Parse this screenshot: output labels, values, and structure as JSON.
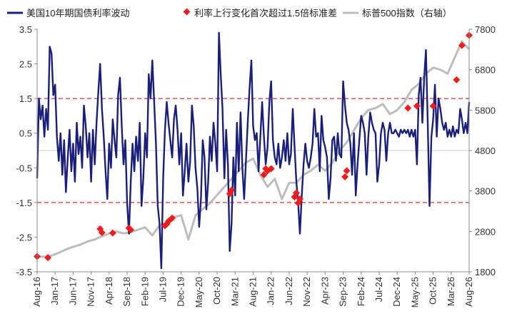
{
  "chart_data": {
    "type": "line",
    "title": "",
    "legend": {
      "placement": "top",
      "entries": [
        {
          "key": "yield",
          "label": "美国10年期国债利率波动"
        },
        {
          "key": "markers",
          "label": "利率上行变化首次超过1.5倍标准差"
        },
        {
          "key": "sp500",
          "label": "标普500指数（右轴）"
        }
      ]
    },
    "x_axis": {
      "tick_labels": [
        "Aug-16",
        "Jan-17",
        "Jun-17",
        "Nov-17",
        "Apr-18",
        "Sep-18",
        "Feb-19",
        "Jul-19",
        "Dec-19",
        "May-20",
        "Oct-20",
        "Mar-21",
        "Aug-21",
        "Jan-22",
        "Jun-22",
        "Nov-22",
        "Apr-23",
        "Sep-23",
        "Feb-24",
        "Jul-24",
        "Dec-24",
        "May-25",
        "Oct-25",
        "Mar-26",
        "Aug-26"
      ],
      "range_months": [
        0,
        120
      ],
      "tick_step_months": 5
    },
    "y_left": {
      "min": -3.5,
      "max": 3.5,
      "ticks": [
        -3.5,
        -2.5,
        -1.5,
        -0.5,
        0.5,
        1.5,
        2.5,
        3.5
      ]
    },
    "y_right": {
      "min": 1800,
      "max": 7800,
      "ticks": [
        1800,
        2800,
        3800,
        4800,
        5800,
        6800,
        7800
      ]
    },
    "reference_lines": [
      {
        "value": 1.5,
        "axis": "left",
        "style": "dashed",
        "color": "#e03030"
      },
      {
        "value": -1.5,
        "axis": "left",
        "style": "dashed",
        "color": "#e03030"
      },
      {
        "value": 0,
        "axis": "left",
        "style": "solid",
        "color": "#cccccc"
      }
    ],
    "colors": {
      "yield": "#1b1f7c",
      "markers": "#ee1c1c",
      "sp500": "#bdbdbd"
    },
    "series": [
      {
        "key": "yield",
        "name": "美国10年期国债利率波动",
        "axis": "left",
        "x": [
          0,
          0.5,
          1,
          1.5,
          2,
          2.5,
          3,
          3.5,
          4,
          4.5,
          5,
          5.5,
          6,
          6.5,
          7,
          7.5,
          8,
          8.5,
          9,
          9.5,
          10,
          10.5,
          11,
          11.5,
          12,
          12.5,
          13,
          13.5,
          14,
          14.5,
          15,
          15.5,
          16,
          16.5,
          17,
          17.5,
          18,
          18.5,
          19,
          19.5,
          20,
          20.5,
          21,
          21.5,
          22,
          22.5,
          23,
          23.5,
          24,
          24.5,
          25,
          25.5,
          26,
          26.5,
          27,
          27.5,
          28,
          28.5,
          29,
          29.5,
          30,
          30.5,
          31,
          31.5,
          32,
          32.5,
          33,
          33.5,
          34,
          34.5,
          35,
          35.5,
          36,
          36.5,
          37,
          37.5,
          38,
          38.5,
          39,
          39.5,
          40,
          40.5,
          41,
          41.5,
          42,
          42.5,
          43,
          43.5,
          44,
          44.5,
          45,
          45.5,
          46,
          46.5,
          47,
          47.5,
          48,
          48.5,
          49,
          49.5,
          50,
          50.5,
          51,
          51.5,
          52,
          52.5,
          53,
          53.5,
          54,
          54.5,
          55,
          55.5,
          56,
          56.5,
          57,
          57.5,
          58,
          58.5,
          59,
          59.5,
          60,
          60.5,
          61,
          61.5,
          62,
          62.5,
          63,
          63.5,
          64,
          64.5,
          65,
          65.5,
          66,
          66.5,
          67,
          67.5,
          68,
          68.5,
          69,
          69.5,
          70,
          70.5,
          71,
          71.5,
          72,
          72.5,
          73,
          73.5,
          74,
          74.5,
          75,
          75.5,
          76,
          76.5,
          77,
          77.5,
          78,
          78.5,
          79,
          79.5,
          80,
          80.5,
          81,
          81.5,
          82,
          82.5,
          83,
          83.5,
          84,
          84.5,
          85,
          85.5,
          86,
          86.5,
          87,
          87.5,
          88,
          88.5,
          89,
          89.5,
          90,
          90.5,
          91,
          91.5,
          92,
          92.5,
          93,
          93.5,
          94,
          94.5,
          95,
          95.5,
          96,
          96.5,
          97,
          97.5,
          98,
          98.5,
          99,
          99.5,
          100,
          100.5,
          101,
          101.5,
          102,
          102.5,
          103,
          103.5,
          104,
          104.5,
          105,
          105.5,
          106,
          106.5,
          107,
          107.5,
          108,
          108.5,
          109,
          109.5,
          110,
          110.5,
          111,
          111.5,
          112,
          112.5,
          113,
          113.5,
          114,
          114.5,
          115,
          115.5,
          116,
          116.5,
          117,
          117.5,
          118,
          118.5,
          119,
          119.5,
          120
        ],
        "values": [
          -0.8,
          1.5,
          0.9,
          1.3,
          0.4,
          1.2,
          0.6,
          3.0,
          2.8,
          1.6,
          1.9,
          0.4,
          -0.3,
          0.5,
          -0.7,
          0.3,
          -1.2,
          -0.2,
          0.6,
          -0.6,
          0.2,
          -0.9,
          0.8,
          -0.1,
          0.4,
          -0.5,
          1.3,
          0.7,
          -0.2,
          0.5,
          -0.9,
          0.6,
          -0.4,
          0.8,
          1.7,
          2.5,
          1.2,
          0.4,
          -0.6,
          -1.4,
          0.2,
          -0.5,
          0.9,
          0.3,
          -0.2,
          1.6,
          2.1,
          0.7,
          -0.4,
          0.3,
          -1.5,
          -2.4,
          -0.9,
          0.2,
          -0.6,
          0.4,
          -0.3,
          0.8,
          -1.6,
          -0.8,
          0.5,
          -0.2,
          2.2,
          1.5,
          2.6,
          1.4,
          0.2,
          -1.6,
          -2.1,
          -3.4,
          -0.8,
          0.6,
          1.4,
          0.8,
          0.3,
          -0.2,
          0.9,
          1.3,
          0.6,
          -0.4,
          0.5,
          -1.3,
          -0.6,
          0.2,
          -0.9,
          -0.3,
          1.3,
          0.7,
          -0.5,
          -1.1,
          -2.2,
          -1.4,
          0.3,
          -0.2,
          -1.7,
          -0.9,
          0.4,
          -0.3,
          0.8,
          0.2,
          -0.6,
          3.4,
          2.2,
          1.2,
          -0.8,
          0.6,
          -0.4,
          -2.9,
          -2.1,
          -0.2,
          -1.3,
          0.8,
          -0.6,
          1.1,
          -0.5,
          -1.4,
          -0.3,
          0.8,
          1.8,
          2.6,
          0.7,
          0.3,
          0.5,
          -0.6,
          0.4,
          1.4,
          0.4,
          -0.4,
          0.1,
          1.4,
          2.0,
          0.3,
          -0.2,
          -0.4,
          0.2,
          -0.5,
          -0.2,
          0.3,
          -0.3,
          0.5,
          -0.4,
          -0.1,
          1.2,
          0.1,
          -0.9,
          -1.5,
          -2.4,
          -1.3,
          -0.4,
          0.2,
          -0.3,
          -0.5,
          -0.2,
          0.2,
          1.2,
          0.4,
          0.5,
          -0.6,
          1.0,
          0.3,
          0.1,
          -0.2,
          -1.4,
          -0.8,
          0.3,
          0.4,
          -0.3,
          0.5,
          -0.1,
          -0.2,
          2.0,
          1.3,
          0.8,
          0.6,
          0.2,
          -0.7,
          0.5,
          -1.3,
          -0.4,
          0.3,
          1.0,
          0.8,
          0.5,
          -0.7,
          0.4,
          1.1,
          0.8,
          0.6,
          0.5,
          -0.9,
          -0.4,
          0.5,
          0.8,
          0.6,
          -0.3,
          0.5,
          0.8,
          0.5,
          0.5,
          0.6,
          0.5,
          0.4,
          0.6,
          0.5,
          0.6,
          0.5,
          0.6,
          0.4,
          0.6,
          0.4,
          0.6,
          -0.4,
          1.6,
          2.1,
          0.8,
          2.1,
          2.9,
          0.8,
          -1.6,
          0.4,
          0.9,
          1.9,
          0.4,
          1.5,
          1.2,
          0.8,
          0.6,
          0.8,
          0.4,
          0.6,
          0.4,
          0.7,
          0.4,
          0.6,
          0.5,
          1.2,
          0.9,
          0.5,
          0.8,
          0.5,
          1.4
        ]
      },
      {
        "key": "sp500",
        "name": "标普500指数（右轴）",
        "axis": "right",
        "x": [
          0,
          2,
          4,
          6,
          8,
          10,
          12,
          14,
          16,
          18,
          20,
          22,
          24,
          26,
          28,
          30,
          32,
          34,
          36,
          38,
          40,
          42,
          44,
          46,
          48,
          50,
          52,
          54,
          56,
          58,
          60,
          62,
          64,
          66,
          68,
          70,
          72,
          74,
          76,
          78,
          80,
          82,
          84,
          86,
          88,
          90,
          92,
          94,
          96,
          98,
          100,
          102,
          104,
          106,
          108,
          110,
          112,
          114,
          116,
          118,
          120
        ],
        "values": [
          2180,
          2170,
          2200,
          2270,
          2350,
          2420,
          2470,
          2550,
          2600,
          2680,
          2750,
          2800,
          2750,
          2780,
          2840,
          2900,
          2700,
          2950,
          3000,
          3150,
          3200,
          2600,
          3200,
          3350,
          3500,
          3700,
          3900,
          4100,
          4300,
          4500,
          4600,
          4200,
          3900,
          4100,
          3600,
          4000,
          4000,
          4200,
          4300,
          4450,
          4300,
          4500,
          4800,
          5000,
          5300,
          5600,
          5800,
          5850,
          5950,
          5700,
          5800,
          6000,
          6300,
          6450,
          6700,
          6850,
          6800,
          6700,
          7100,
          7500,
          7300
        ]
      }
    ],
    "markers": {
      "key": "markers",
      "name": "利率上行变化首次超过1.5倍标准差",
      "shape": "diamond",
      "points": [
        {
          "x": 0,
          "y": 2180
        },
        {
          "x": 3,
          "y": 2150
        },
        {
          "x": 17.5,
          "y": 2860
        },
        {
          "x": 18,
          "y": 2770
        },
        {
          "x": 21,
          "y": 2760
        },
        {
          "x": 25.5,
          "y": 2880
        },
        {
          "x": 26,
          "y": 2840
        },
        {
          "x": 35.5,
          "y": 2940
        },
        {
          "x": 36,
          "y": 2980
        },
        {
          "x": 36.5,
          "y": 3050
        },
        {
          "x": 37.5,
          "y": 3130
        },
        {
          "x": 53.5,
          "y": 3730
        },
        {
          "x": 54,
          "y": 3820
        },
        {
          "x": 63,
          "y": 4200
        },
        {
          "x": 63.5,
          "y": 4350
        },
        {
          "x": 64,
          "y": 4300
        },
        {
          "x": 65,
          "y": 4350
        },
        {
          "x": 71.5,
          "y": 3650
        },
        {
          "x": 72,
          "y": 3750
        },
        {
          "x": 72.5,
          "y": 3500
        },
        {
          "x": 73,
          "y": 3600
        },
        {
          "x": 85.5,
          "y": 4150
        },
        {
          "x": 86,
          "y": 4300
        },
        {
          "x": 103,
          "y": 5850
        },
        {
          "x": 105.5,
          "y": 5900
        },
        {
          "x": 110,
          "y": 5900
        },
        {
          "x": 116.5,
          "y": 6550
        },
        {
          "x": 118,
          "y": 7400
        },
        {
          "x": 120,
          "y": 7650
        }
      ]
    }
  }
}
